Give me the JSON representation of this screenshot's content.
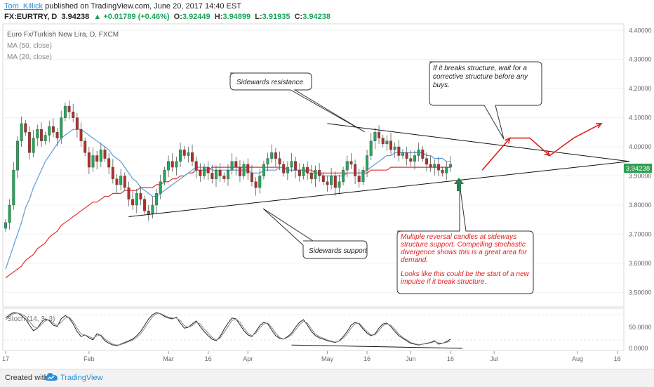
{
  "header": {
    "author": "Tom_Killick",
    "published": "published on TradingView.com, June 20, 2017 14:40 EST",
    "symbol": "FX:EURTRY, D",
    "last": "3.94238",
    "change": "▲ +0.01789 (+0.46%)",
    "open_label": "O:",
    "open": "3.92449",
    "high_label": "H:",
    "high": "3.94899",
    "low_label": "L:",
    "low": "3.91935",
    "close_label": "C:",
    "close": "3.94238"
  },
  "legend": {
    "title": "Euro Fx/Turkish New Lira, D, FXCM",
    "ma50": "MA (50, close)",
    "ma20": "MA (20, close)",
    "stoch": "Stoch (14, 3, 3)"
  },
  "annotations": {
    "resistance": "Sidewards resistance",
    "support": "Sidewards support",
    "breakout_note": "If it breaks structure, wait for a corrective structure before any buys.",
    "reversal_note": "Multiple reversal candles at sideways structure support. Compelling stochastic divergence shows this is a great area for demand.",
    "impulse_note": "Looks like this could be the start of a new impulse if it break structure."
  },
  "footer": {
    "created_with": "Created with",
    "brand": "TradingView"
  },
  "colors": {
    "up": "#26a65b",
    "down": "#b0302a",
    "ma20": "#5b9bd5",
    "ma50": "#e03030",
    "stoch_k": "#222222",
    "stoch_d": "#888888",
    "note_red": "#e02020",
    "arrow_green": "#2e7d4f",
    "price_tag": "#2ea050"
  },
  "chart_data": [
    {
      "type": "candlestick",
      "title": "Euro Fx/Turkish New Lira, D, FXCM",
      "ylim": [
        3.45,
        4.42
      ],
      "y_ticks": [
        "4.40000",
        "4.30000",
        "4.20000",
        "4.10000",
        "4.00000",
        "3.90000",
        "3.80000",
        "3.70000",
        "3.60000",
        "3.50000"
      ],
      "x_ticks": [
        "17",
        "Feb",
        "Mar",
        "16",
        "Apr",
        "May",
        "16",
        "Jun",
        "16",
        "Jul",
        "Aug",
        "16"
      ],
      "x_tick_index": [
        0,
        21,
        41,
        51,
        61,
        81,
        91,
        102,
        112,
        123,
        144,
        154
      ],
      "last_price_label": "3.94238",
      "close": [
        3.74,
        3.8,
        3.92,
        4.02,
        4.08,
        4.05,
        3.98,
        4.03,
        4.06,
        4.02,
        4.04,
        4.07,
        4.05,
        4.03,
        4.1,
        4.14,
        4.12,
        4.1,
        4.06,
        4.02,
        3.98,
        3.93,
        3.97,
        3.95,
        3.99,
        3.96,
        3.93,
        3.89,
        3.87,
        3.9,
        3.86,
        3.82,
        3.8,
        3.84,
        3.82,
        3.78,
        3.77,
        3.8,
        3.84,
        3.88,
        3.92,
        3.95,
        3.93,
        3.95,
        3.99,
        3.97,
        3.98,
        3.95,
        3.92,
        3.9,
        3.93,
        3.91,
        3.89,
        3.92,
        3.9,
        3.89,
        3.92,
        3.95,
        3.93,
        3.9,
        3.94,
        3.91,
        3.88,
        3.86,
        3.9,
        3.94,
        3.96,
        3.98,
        3.96,
        3.94,
        3.91,
        3.93,
        3.95,
        3.92,
        3.9,
        3.93,
        3.91,
        3.89,
        3.92,
        3.9,
        3.88,
        3.87,
        3.9,
        3.86,
        3.88,
        3.92,
        3.95,
        3.94,
        3.9,
        3.88,
        3.92,
        3.97,
        4.02,
        4.05,
        4.03,
        4.01,
        4.02,
        3.99,
        4.0,
        3.97,
        3.98,
        3.96,
        3.95,
        3.97,
        3.99,
        3.96,
        3.94,
        3.93,
        3.94,
        3.92,
        3.91,
        3.93,
        3.94
      ],
      "ma20": [
        3.58,
        3.62,
        3.66,
        3.7,
        3.74,
        3.79,
        3.82,
        3.86,
        3.89,
        3.92,
        3.95,
        3.97,
        3.99,
        4.01,
        4.03,
        4.04,
        4.05,
        4.06,
        4.06,
        4.06,
        4.05,
        4.04,
        4.03,
        4.02,
        4.01,
        4.0,
        3.99,
        3.97,
        3.96,
        3.95,
        3.93,
        3.91,
        3.89,
        3.88,
        3.86,
        3.85,
        3.84,
        3.83,
        3.83,
        3.84,
        3.85,
        3.86,
        3.87,
        3.88,
        3.89,
        3.9,
        3.91,
        3.92,
        3.93,
        3.93,
        3.93,
        3.93,
        3.92,
        3.92,
        3.92,
        3.92,
        3.92,
        3.92,
        3.92,
        3.92,
        3.92,
        3.92,
        3.91,
        3.91,
        3.91,
        3.92,
        3.92,
        3.92,
        3.92,
        3.93,
        3.93,
        3.92,
        3.92,
        3.92,
        3.92,
        3.92,
        3.91,
        3.91,
        3.91,
        3.91,
        3.9,
        3.9,
        3.9,
        3.9,
        3.9,
        3.9,
        3.91,
        3.91,
        3.91,
        3.91,
        3.91,
        3.92,
        3.93,
        3.94,
        3.95,
        3.96,
        3.97,
        3.97,
        3.98,
        3.98,
        3.98,
        3.98,
        3.98,
        3.98,
        3.98,
        3.98,
        3.97,
        3.97,
        3.96,
        3.96,
        3.96,
        3.95,
        3.95
      ],
      "ma50": [
        3.55,
        3.56,
        3.57,
        3.58,
        3.59,
        3.61,
        3.62,
        3.63,
        3.65,
        3.66,
        3.67,
        3.69,
        3.7,
        3.71,
        3.73,
        3.74,
        3.75,
        3.76,
        3.77,
        3.78,
        3.79,
        3.8,
        3.81,
        3.81,
        3.82,
        3.83,
        3.83,
        3.84,
        3.84,
        3.84,
        3.85,
        3.85,
        3.85,
        3.85,
        3.86,
        3.86,
        3.86,
        3.86,
        3.87,
        3.87,
        3.88,
        3.88,
        3.89,
        3.89,
        3.9,
        3.9,
        3.91,
        3.91,
        3.92,
        3.92,
        3.92,
        3.92,
        3.93,
        3.93,
        3.93,
        3.93,
        3.93,
        3.93,
        3.93,
        3.93,
        3.93,
        3.93,
        3.93,
        3.93,
        3.93,
        3.93,
        3.93,
        3.93,
        3.93,
        3.93,
        3.93,
        3.92,
        3.92,
        3.92,
        3.92,
        3.92,
        3.92,
        3.92,
        3.91,
        3.91,
        3.91,
        3.91,
        3.91,
        3.91,
        3.91,
        3.91,
        3.91,
        3.91,
        3.91,
        3.91,
        3.91,
        3.91,
        3.92,
        3.92,
        3.92,
        3.92,
        3.92,
        3.93,
        3.93,
        3.93,
        3.93,
        3.93,
        3.93,
        3.93,
        3.93,
        3.93,
        3.93,
        3.93,
        3.93,
        3.93,
        3.93,
        3.93,
        3.93
      ],
      "trendlines": {
        "resistance": [
          [
            81,
            4.08
          ],
          [
            157,
            3.95
          ]
        ],
        "support": [
          [
            31,
            3.76
          ],
          [
            157,
            3.95
          ]
        ]
      },
      "projection": [
        [
          120,
          3.92
        ],
        [
          127,
          4.03
        ],
        [
          132,
          4.03
        ],
        [
          137,
          3.97
        ],
        [
          143,
          4.03
        ],
        [
          150,
          4.08
        ]
      ],
      "projection_arrows": [
        [
          135,
          3.95
        ],
        [
          155,
          3.95
        ]
      ]
    },
    {
      "type": "line",
      "title": "Stoch (14, 3, 3)",
      "ylim": [
        -5,
        95
      ],
      "y_ticks": [
        "50.0000",
        "0.0000"
      ],
      "series": [
        {
          "name": "%K",
          "values": [
            72,
            80,
            85,
            84,
            78,
            70,
            55,
            42,
            48,
            62,
            70,
            66,
            55,
            52,
            70,
            78,
            72,
            58,
            40,
            28,
            32,
            25,
            20,
            35,
            30,
            18,
            12,
            8,
            6,
            10,
            14,
            18,
            22,
            30,
            40,
            55,
            70,
            80,
            85,
            82,
            76,
            72,
            70,
            74,
            60,
            48,
            50,
            58,
            65,
            52,
            40,
            30,
            22,
            18,
            28,
            45,
            60,
            72,
            70,
            56,
            42,
            32,
            28,
            40,
            54,
            62,
            58,
            44,
            30,
            24,
            22,
            28,
            36,
            50,
            62,
            68,
            55,
            40,
            30,
            25,
            22,
            18,
            16,
            14,
            18,
            28,
            40,
            55,
            62,
            58,
            46,
            36,
            30,
            34,
            48,
            58,
            60,
            52,
            40,
            30,
            24,
            18,
            12,
            10,
            8,
            10,
            12,
            14,
            18,
            10,
            12,
            16,
            22
          ]
        },
        {
          "name": "%D",
          "values": [
            68,
            76,
            82,
            84,
            81,
            76,
            65,
            52,
            48,
            56,
            66,
            68,
            60,
            54,
            62,
            72,
            74,
            64,
            48,
            34,
            32,
            28,
            24,
            30,
            32,
            22,
            16,
            10,
            8,
            9,
            12,
            16,
            20,
            26,
            34,
            48,
            62,
            75,
            82,
            83,
            78,
            74,
            72,
            72,
            66,
            54,
            50,
            54,
            62,
            58,
            46,
            36,
            26,
            20,
            24,
            38,
            52,
            66,
            70,
            62,
            48,
            36,
            30,
            36,
            48,
            58,
            60,
            50,
            36,
            26,
            22,
            26,
            32,
            44,
            56,
            64,
            60,
            46,
            34,
            28,
            24,
            20,
            17,
            15,
            17,
            24,
            34,
            48,
            58,
            60,
            50,
            40,
            32,
            32,
            42,
            54,
            58,
            55,
            45,
            34,
            26,
            20,
            14,
            11,
            9,
            10,
            11,
            13,
            16,
            13,
            12,
            14,
            18
          ]
        }
      ],
      "divergence_line": [
        [
          72,
          8
        ],
        [
          115,
          0
        ]
      ]
    }
  ]
}
